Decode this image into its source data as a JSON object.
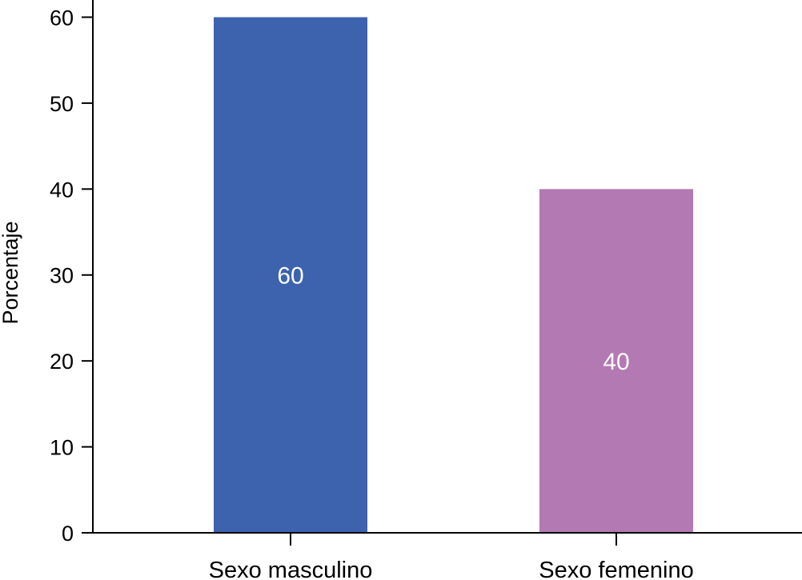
{
  "chart_data": {
    "type": "bar",
    "categories": [
      "Sexo masculino",
      "Sexo femenino"
    ],
    "values": [
      60,
      40
    ],
    "value_labels": [
      "60",
      "40"
    ],
    "colors": [
      "#3d62ae",
      "#b379b2"
    ],
    "title": "",
    "xlabel": "",
    "ylabel": "Porcentaje",
    "ylim": [
      0,
      62
    ],
    "yticks": [
      0,
      10,
      20,
      30,
      40,
      50,
      60
    ],
    "grid": false,
    "legend": "none"
  }
}
